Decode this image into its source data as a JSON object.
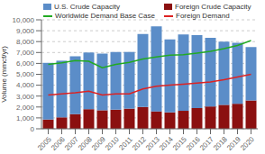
{
  "chart_data": {
    "type": "bar",
    "stacked": true,
    "ylabel": "Volume (mmcf/yr)",
    "categories": [
      "2005",
      "2006",
      "2007",
      "2008",
      "2009",
      "2010",
      "2011",
      "2012",
      "2013",
      "2014",
      "2015",
      "2016",
      "2017",
      "2018",
      "2019",
      "2020"
    ],
    "series": [
      {
        "name": "U.S. Crude Capacity",
        "type": "bar",
        "color": "#5B8DC8",
        "values": [
          5200,
          5200,
          5300,
          5200,
          5200,
          5300,
          5200,
          6700,
          7800,
          6700,
          7000,
          6700,
          6300,
          5800,
          5600,
          4900
        ]
      },
      {
        "name": "Foreign Crude Capacity",
        "type": "bar",
        "color": "#8B1010",
        "values": [
          850,
          1050,
          1350,
          1800,
          1700,
          1750,
          1850,
          2000,
          1600,
          1500,
          1650,
          1900,
          2050,
          2200,
          2300,
          2600
        ]
      },
      {
        "name": "Worldwide Demand Base Case",
        "type": "line",
        "color": "#22AA22",
        "values": [
          5900,
          6050,
          6250,
          6200,
          5600,
          5900,
          6100,
          6400,
          6600,
          6750,
          6800,
          6950,
          7100,
          7350,
          7650,
          8100
        ]
      },
      {
        "name": "Foreign Demand",
        "type": "line",
        "color": "#DD2222",
        "values": [
          3100,
          3200,
          3300,
          3450,
          3100,
          3200,
          3200,
          3650,
          3900,
          4000,
          4100,
          4200,
          4300,
          4500,
          4750,
          5000
        ]
      }
    ],
    "ylim": [
      0,
      10000
    ],
    "yticks": [
      0,
      {
        "value": 1000,
        "label": "1,000"
      },
      {
        "value": 2000,
        "label": "2,000"
      },
      {
        "value": 3000,
        "label": "3,000"
      },
      {
        "value": 4000,
        "label": "4,000"
      },
      {
        "value": 5000,
        "label": "5,000"
      },
      {
        "value": 6000,
        "label": "6,000"
      },
      {
        "value": 7000,
        "label": "7,000"
      },
      {
        "value": 8000,
        "label": "8,000"
      },
      {
        "value": 9000,
        "label": "9,000"
      },
      {
        "value": 10000,
        "label": "10,000"
      }
    ],
    "grid": true,
    "legend": "upper left"
  }
}
